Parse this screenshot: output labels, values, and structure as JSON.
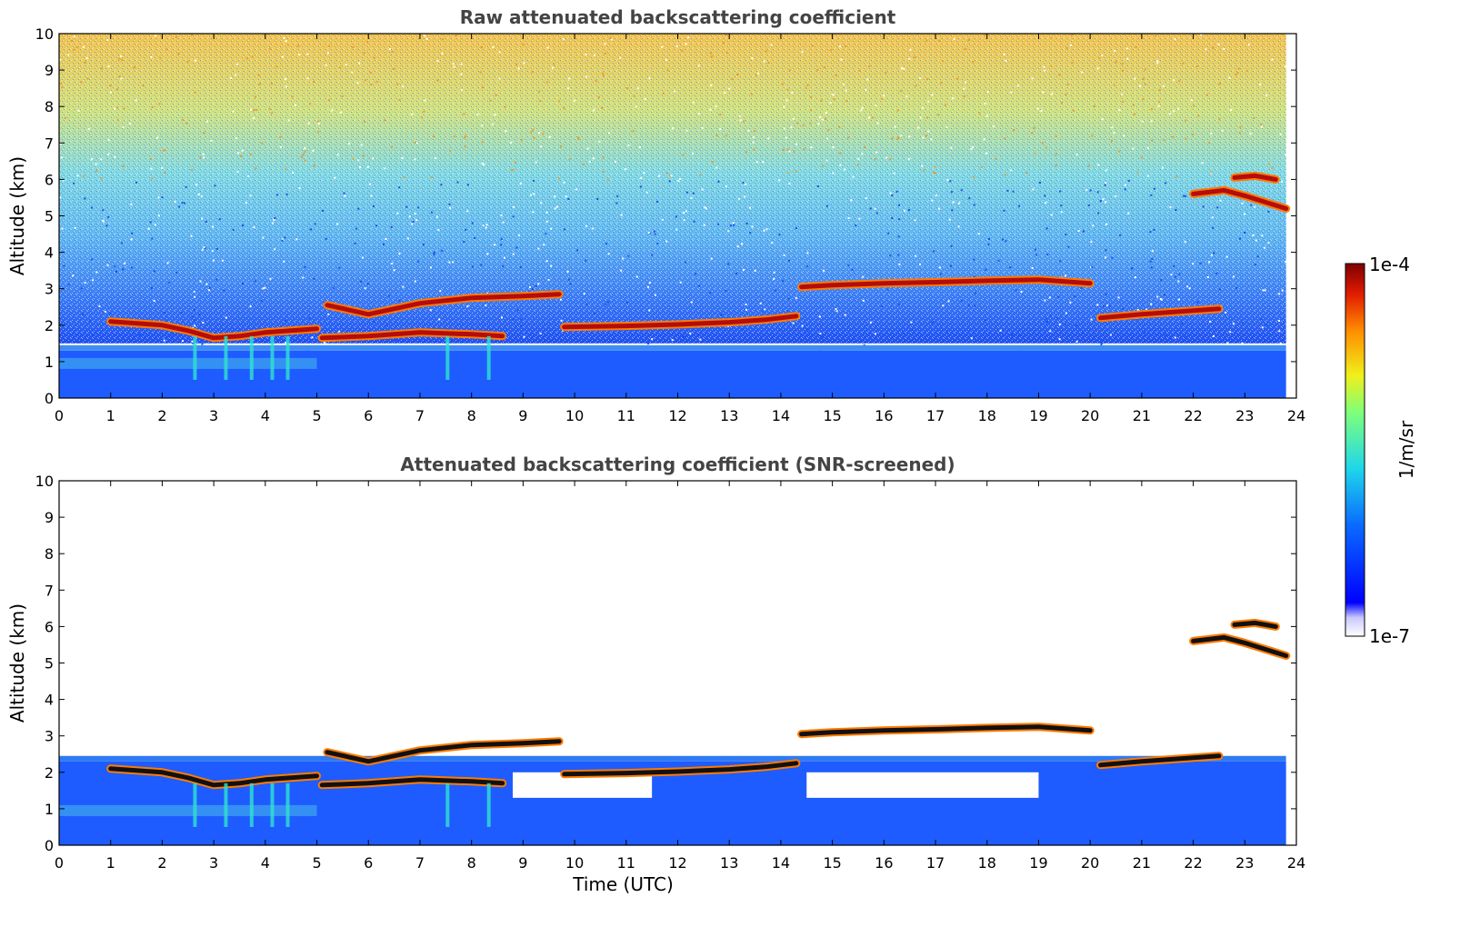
{
  "chart_data": [
    {
      "type": "heatmap",
      "title": "Raw attenuated backscattering coefficient",
      "xlabel": "",
      "ylabel": "Altitude (km)",
      "xlim": [
        0,
        24
      ],
      "ylim": [
        0,
        10
      ],
      "xticks": [
        "0",
        "1",
        "2",
        "3",
        "4",
        "5",
        "6",
        "7",
        "8",
        "9",
        "10",
        "11",
        "12",
        "13",
        "14",
        "15",
        "16",
        "17",
        "18",
        "19",
        "20",
        "21",
        "22",
        "23",
        "24"
      ],
      "yticks": [
        "0",
        "1",
        "2",
        "3",
        "4",
        "5",
        "6",
        "7",
        "8",
        "9",
        "10"
      ],
      "screened": false,
      "cloud_layers": [
        {
          "x": [
            1.0,
            2.0,
            2.5,
            3.0,
            3.5,
            4.0,
            4.5,
            5.0
          ],
          "y": [
            2.1,
            2.0,
            1.85,
            1.65,
            1.7,
            1.8,
            1.85,
            1.9
          ]
        },
        {
          "x": [
            5.1,
            6.0,
            7.0,
            8.0,
            8.6
          ],
          "y": [
            1.65,
            1.7,
            1.8,
            1.75,
            1.7
          ]
        },
        {
          "x": [
            9.8,
            11.0,
            12.0,
            13.0,
            13.7,
            14.3
          ],
          "y": [
            1.95,
            1.98,
            2.02,
            2.08,
            2.15,
            2.25
          ]
        },
        {
          "x": [
            14.4,
            15.0,
            16.0,
            17.0,
            18.0,
            19.0,
            20.0
          ],
          "y": [
            3.05,
            3.1,
            3.15,
            3.18,
            3.22,
            3.25,
            3.15
          ]
        },
        {
          "x": [
            20.2,
            21.0,
            22.0,
            22.5
          ],
          "y": [
            2.2,
            2.3,
            2.4,
            2.45
          ]
        },
        {
          "x": [
            22.0,
            22.6,
            23.0,
            23.8
          ],
          "y": [
            5.6,
            5.7,
            5.55,
            5.2
          ]
        },
        {
          "x": [
            22.8,
            23.2,
            23.6
          ],
          "y": [
            6.05,
            6.1,
            6.0
          ]
        },
        {
          "x": [
            5.2,
            6.0,
            7.0,
            8.0,
            9.0,
            9.7
          ],
          "y": [
            2.55,
            2.3,
            2.6,
            2.75,
            2.8,
            2.85
          ]
        }
      ],
      "boundary_layer_top_km": 1.3,
      "noise": true
    },
    {
      "type": "heatmap",
      "title": "Attenuated backscattering coefficient (SNR-screened)",
      "xlabel": "Time (UTC)",
      "ylabel": "Altitude (km)",
      "xlim": [
        0,
        24
      ],
      "ylim": [
        0,
        10
      ],
      "xticks": [
        "0",
        "1",
        "2",
        "3",
        "4",
        "5",
        "6",
        "7",
        "8",
        "9",
        "10",
        "11",
        "12",
        "13",
        "14",
        "15",
        "16",
        "17",
        "18",
        "19",
        "20",
        "21",
        "22",
        "23",
        "24"
      ],
      "yticks": [
        "0",
        "1",
        "2",
        "3",
        "4",
        "5",
        "6",
        "7",
        "8",
        "9",
        "10"
      ],
      "screened": true,
      "cloud_layers": [
        {
          "x": [
            1.0,
            2.0,
            2.5,
            3.0,
            3.5,
            4.0,
            4.5,
            5.0
          ],
          "y": [
            2.1,
            2.0,
            1.85,
            1.65,
            1.7,
            1.8,
            1.85,
            1.9
          ]
        },
        {
          "x": [
            5.1,
            6.0,
            7.0,
            8.0,
            8.6
          ],
          "y": [
            1.65,
            1.7,
            1.8,
            1.75,
            1.7
          ]
        },
        {
          "x": [
            9.8,
            11.0,
            12.0,
            13.0,
            13.7,
            14.3
          ],
          "y": [
            1.95,
            1.98,
            2.02,
            2.08,
            2.15,
            2.25
          ]
        },
        {
          "x": [
            14.4,
            15.0,
            16.0,
            17.0,
            18.0,
            19.0,
            20.0
          ],
          "y": [
            3.05,
            3.1,
            3.15,
            3.18,
            3.22,
            3.25,
            3.15
          ]
        },
        {
          "x": [
            20.2,
            21.0,
            22.0,
            22.5
          ],
          "y": [
            2.2,
            2.3,
            2.4,
            2.45
          ]
        },
        {
          "x": [
            22.0,
            22.6,
            23.0,
            23.8
          ],
          "y": [
            5.6,
            5.7,
            5.55,
            5.2
          ]
        },
        {
          "x": [
            22.8,
            23.2,
            23.6
          ],
          "y": [
            6.05,
            6.1,
            6.0
          ]
        },
        {
          "x": [
            5.2,
            6.0,
            7.0,
            8.0,
            9.0,
            9.7
          ],
          "y": [
            2.55,
            2.3,
            2.6,
            2.75,
            2.8,
            2.85
          ]
        }
      ],
      "boundary_layer_top_km": 2.3,
      "noise": false
    }
  ],
  "colorbar": {
    "label": "1/m/sr",
    "max_label": "1e-4",
    "min_label": "1e-7",
    "colormap": "jet",
    "scale": "log"
  },
  "colors": {
    "clear_air": "#ffffff",
    "boundary_layer": "#1e5cff",
    "noise_high": "#f4b43c",
    "noise_low": "#3d8bff",
    "cloud": "#b30d0d",
    "cloud_edge": "#ff7a00",
    "cloud_core_screened": "#111111",
    "aerosol": "#2ee3d0",
    "title_text": "#444444"
  }
}
